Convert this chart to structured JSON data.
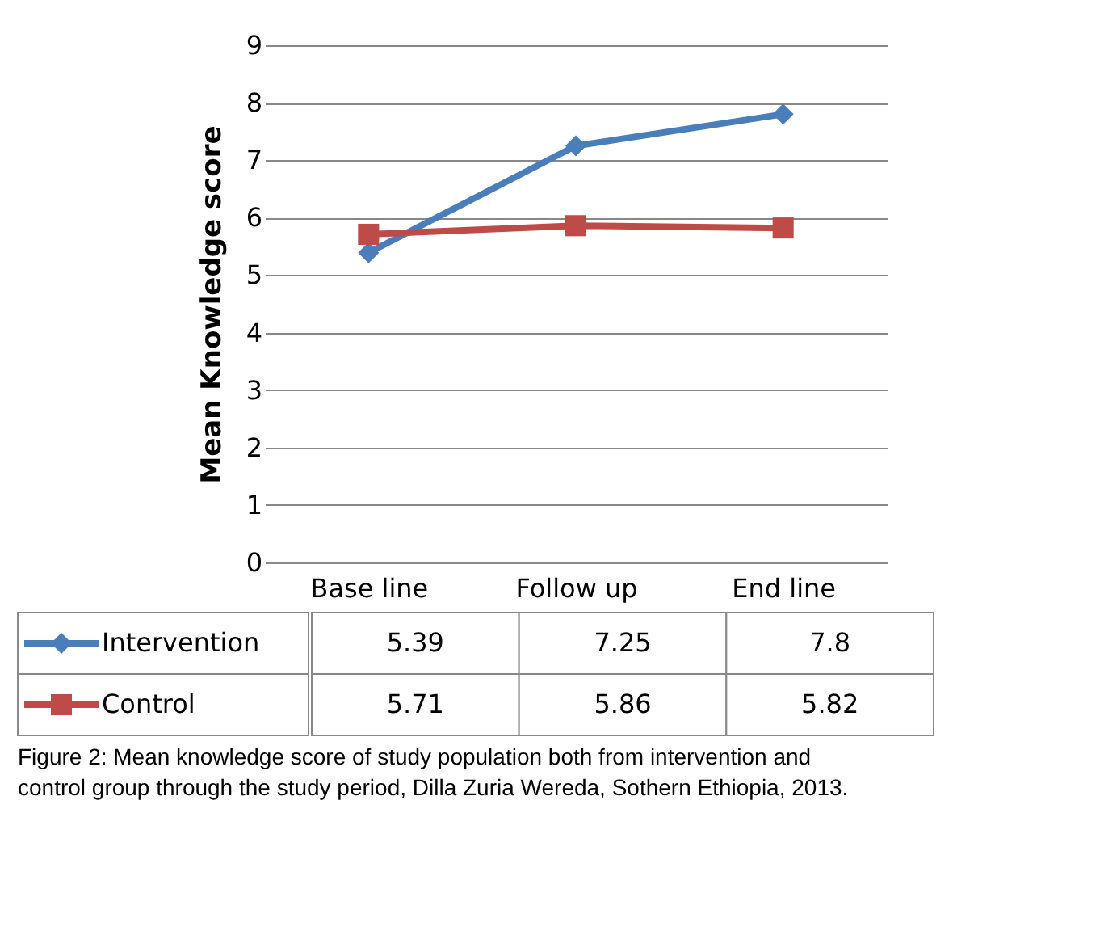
{
  "chart_data": {
    "type": "line",
    "ylabel": "Mean Knowledge score",
    "categories": [
      "Base line",
      "Follow up",
      "End line"
    ],
    "series": [
      {
        "name": "Intervention",
        "color": "#4a7ebb",
        "marker": "diamond",
        "values": [
          5.39,
          7.25,
          7.8
        ]
      },
      {
        "name": "Control",
        "color": "#be4b48",
        "marker": "square",
        "values": [
          5.71,
          5.86,
          5.82
        ]
      }
    ],
    "ylim": [
      0,
      9
    ],
    "yticks": [
      0,
      1,
      2,
      3,
      4,
      5,
      6,
      7,
      8,
      9
    ],
    "grid": "y",
    "legend": "bottom",
    "data_labels": true,
    "annotations": [
      "Figure 2: Mean knowledge score of study population both from intervention and control group through the study period, Dilla Zuria Wereda, Sothern Ethiopia, 2013."
    ]
  }
}
